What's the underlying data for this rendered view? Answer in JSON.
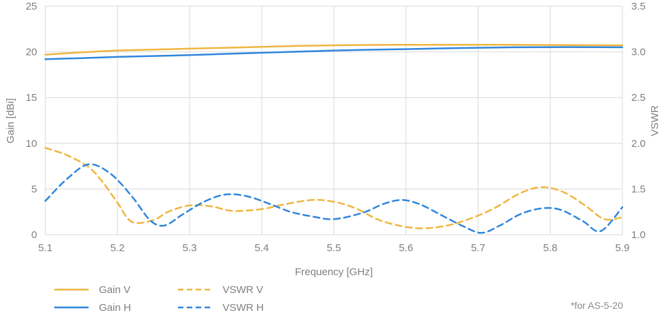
{
  "chart_data": {
    "type": "line",
    "title": "",
    "xlabel": "Frequency [GHz]",
    "ylabel_left": "Gain [dBi]",
    "ylabel_right": "VSWR",
    "xlim": [
      5.1,
      5.9
    ],
    "x_tick_labels": [
      "5.1",
      "5.2",
      "5.3",
      "5.4",
      "5.5",
      "5.6",
      "5.7",
      "5.8",
      "5.9"
    ],
    "ylim_left": [
      0,
      25
    ],
    "left_tick_labels": [
      "0",
      "5",
      "10",
      "15",
      "20",
      "25"
    ],
    "ylim_right": [
      1.0,
      3.5
    ],
    "right_tick_labels": [
      "1.0",
      "1.5",
      "2.0",
      "2.5",
      "3.0",
      "3.5"
    ],
    "grid": true,
    "legend_position": "bottom-left",
    "colors": {
      "amber": "#EFB53F",
      "blue": "#2F86DC",
      "grid": "#D9D9D9",
      "text": "#7F7F7F"
    },
    "series": [
      {
        "name": "Gain V",
        "axis": "left",
        "line": "solid",
        "color": "#EFB53F",
        "points": [
          [
            5.1,
            19.7
          ],
          [
            5.15,
            19.95
          ],
          [
            5.2,
            20.15
          ],
          [
            5.25,
            20.25
          ],
          [
            5.3,
            20.35
          ],
          [
            5.35,
            20.45
          ],
          [
            5.4,
            20.55
          ],
          [
            5.45,
            20.65
          ],
          [
            5.5,
            20.72
          ],
          [
            5.55,
            20.76
          ],
          [
            5.6,
            20.78
          ],
          [
            5.65,
            20.78
          ],
          [
            5.7,
            20.78
          ],
          [
            5.75,
            20.77
          ],
          [
            5.8,
            20.75
          ],
          [
            5.85,
            20.73
          ],
          [
            5.9,
            20.72
          ]
        ]
      },
      {
        "name": "Gain H",
        "axis": "left",
        "line": "solid",
        "color": "#2F86DC",
        "points": [
          [
            5.1,
            19.2
          ],
          [
            5.15,
            19.32
          ],
          [
            5.2,
            19.45
          ],
          [
            5.25,
            19.55
          ],
          [
            5.3,
            19.65
          ],
          [
            5.35,
            19.78
          ],
          [
            5.4,
            19.9
          ],
          [
            5.45,
            20.02
          ],
          [
            5.5,
            20.15
          ],
          [
            5.55,
            20.23
          ],
          [
            5.6,
            20.3
          ],
          [
            5.65,
            20.38
          ],
          [
            5.7,
            20.45
          ],
          [
            5.75,
            20.5
          ],
          [
            5.8,
            20.52
          ],
          [
            5.85,
            20.52
          ],
          [
            5.9,
            20.5
          ]
        ]
      },
      {
        "name": "VSWR V",
        "axis": "right",
        "line": "dashed",
        "color": "#EFB53F",
        "points": [
          [
            5.1,
            1.95
          ],
          [
            5.13,
            1.87
          ],
          [
            5.16,
            1.74
          ],
          [
            5.18,
            1.57
          ],
          [
            5.2,
            1.35
          ],
          [
            5.22,
            1.14
          ],
          [
            5.25,
            1.16
          ],
          [
            5.27,
            1.25
          ],
          [
            5.3,
            1.32
          ],
          [
            5.33,
            1.31
          ],
          [
            5.36,
            1.26
          ],
          [
            5.4,
            1.28
          ],
          [
            5.43,
            1.33
          ],
          [
            5.47,
            1.38
          ],
          [
            5.5,
            1.36
          ],
          [
            5.53,
            1.29
          ],
          [
            5.56,
            1.17
          ],
          [
            5.59,
            1.1
          ],
          [
            5.62,
            1.07
          ],
          [
            5.65,
            1.09
          ],
          [
            5.68,
            1.15
          ],
          [
            5.72,
            1.28
          ],
          [
            5.76,
            1.46
          ],
          [
            5.79,
            1.52
          ],
          [
            5.82,
            1.46
          ],
          [
            5.85,
            1.31
          ],
          [
            5.875,
            1.17
          ],
          [
            5.9,
            1.19
          ]
        ]
      },
      {
        "name": "VSWR H",
        "axis": "right",
        "line": "dashed",
        "color": "#2F86DC",
        "points": [
          [
            5.1,
            1.37
          ],
          [
            5.13,
            1.61
          ],
          [
            5.16,
            1.77
          ],
          [
            5.19,
            1.67
          ],
          [
            5.22,
            1.42
          ],
          [
            5.245,
            1.16
          ],
          [
            5.265,
            1.1
          ],
          [
            5.29,
            1.22
          ],
          [
            5.32,
            1.36
          ],
          [
            5.35,
            1.44
          ],
          [
            5.38,
            1.42
          ],
          [
            5.41,
            1.34
          ],
          [
            5.44,
            1.25
          ],
          [
            5.47,
            1.2
          ],
          [
            5.5,
            1.17
          ],
          [
            5.54,
            1.24
          ],
          [
            5.57,
            1.34
          ],
          [
            5.595,
            1.38
          ],
          [
            5.62,
            1.33
          ],
          [
            5.65,
            1.21
          ],
          [
            5.68,
            1.09
          ],
          [
            5.705,
            1.02
          ],
          [
            5.73,
            1.1
          ],
          [
            5.76,
            1.23
          ],
          [
            5.79,
            1.29
          ],
          [
            5.815,
            1.27
          ],
          [
            5.845,
            1.15
          ],
          [
            5.87,
            1.04
          ],
          [
            5.9,
            1.3
          ]
        ]
      }
    ],
    "footnote": "*for AS-5-20"
  }
}
